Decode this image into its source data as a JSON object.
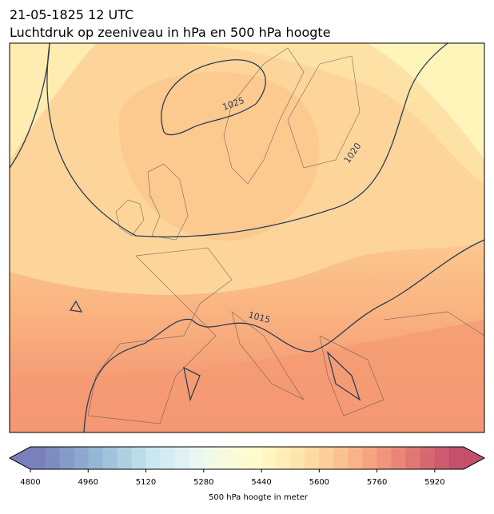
{
  "header": {
    "time": "21-05-1825 12 UTC",
    "subtitle": "Luchtdruk op zeeniveau in hPa en 500 hPa hoogte"
  },
  "map": {
    "contour_labels": [
      "1025",
      "1020",
      "1015"
    ]
  },
  "colorbar": {
    "label": "500 hPa hoogte in meter",
    "min": 4800,
    "max": 6000,
    "ticks": [
      4800,
      4960,
      5120,
      5280,
      5440,
      5600,
      5760,
      5920
    ],
    "colors": [
      "#6a72b4",
      "#6f80ba",
      "#7890c2",
      "#819fc9",
      "#8aafd0",
      "#97bdd8",
      "#a6cbe0",
      "#b5d8e8",
      "#c4e3ef",
      "#d1eaf3",
      "#ddf0f5",
      "#e7f5f1",
      "#eff8e6",
      "#f6fadb",
      "#fbfcd0",
      "#fffcc6",
      "#fff5bb",
      "#ffecb0",
      "#fee2a5",
      "#fdd59a",
      "#fcc98f",
      "#fbbb85",
      "#f8ab7c",
      "#f59b74",
      "#ef8a6e",
      "#e87969",
      "#de6865",
      "#d35862",
      "#c84a5f",
      "#bc3e5c"
    ]
  }
}
